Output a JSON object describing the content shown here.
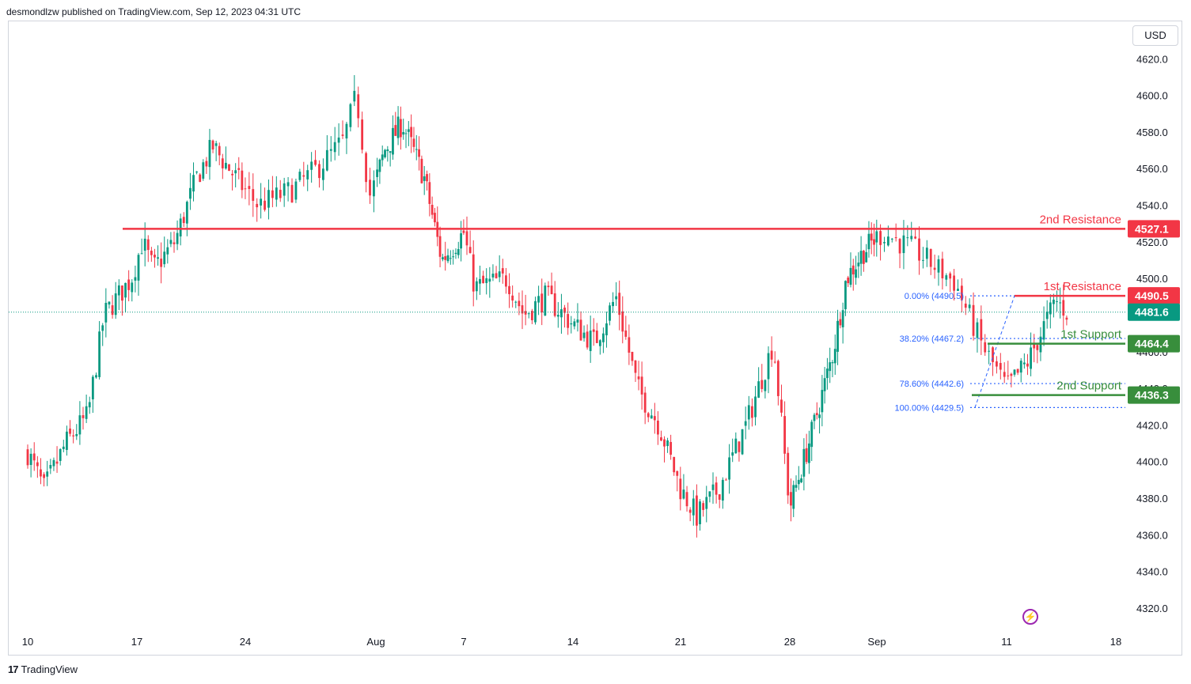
{
  "header": {
    "published_text": "desmondlzw published on TradingView.com, Sep 12, 2023 04:31 UTC",
    "currency": "USD",
    "brand": "TradingView",
    "brand_logo": "17"
  },
  "colors": {
    "up": "#089981",
    "down": "#f23645",
    "resistance": "#f23645",
    "support": "#388e3c",
    "current_price": "#089981",
    "fib": "#2962ff",
    "bolt": "#9c27b0"
  },
  "icons": {
    "brand_logo": "tradingview-logo-icon",
    "bolt": "lightning-icon"
  },
  "chart_data": {
    "type": "candlestick",
    "symbol": "",
    "ylim": [
      4305,
      4632
    ],
    "y_ticks": [
      4320.0,
      4340.0,
      4360.0,
      4380.0,
      4400.0,
      4420.0,
      4440.0,
      4460.0,
      4480.0,
      4500.0,
      4520.0,
      4540.0,
      4560.0,
      4580.0,
      4600.0,
      4620.0
    ],
    "x_ticks": [
      {
        "label": "10",
        "pos": 0
      },
      {
        "label": "17",
        "pos": 1
      },
      {
        "label": "24",
        "pos": 2
      },
      {
        "label": "Aug",
        "pos": 3
      },
      {
        "label": "7",
        "pos": 4
      },
      {
        "label": "14",
        "pos": 5
      },
      {
        "label": "21",
        "pos": 6
      },
      {
        "label": "28",
        "pos": 7
      },
      {
        "label": "Sep",
        "pos": 8
      },
      {
        "label": "11",
        "pos": 9
      },
      {
        "label": "18",
        "pos": 10
      }
    ],
    "close_path": [
      [
        0,
        4405
      ],
      [
        0.15,
        4385
      ],
      [
        0.35,
        4410
      ],
      [
        0.55,
        4425
      ],
      [
        0.7,
        4480
      ],
      [
        0.95,
        4500
      ],
      [
        1.05,
        4520
      ],
      [
        1.15,
        4505
      ],
      [
        1.35,
        4520
      ],
      [
        1.55,
        4555
      ],
      [
        1.7,
        4572
      ],
      [
        1.85,
        4560
      ],
      [
        2.1,
        4540
      ],
      [
        2.35,
        4548
      ],
      [
        2.55,
        4560
      ],
      [
        2.75,
        4575
      ],
      [
        2.85,
        4600
      ],
      [
        2.95,
        4545
      ],
      [
        3.1,
        4570
      ],
      [
        3.3,
        4585
      ],
      [
        3.55,
        4555
      ],
      [
        3.75,
        4510
      ],
      [
        4.0,
        4525
      ],
      [
        4.1,
        4495
      ],
      [
        4.4,
        4500
      ],
      [
        4.55,
        4480
      ],
      [
        4.75,
        4490
      ],
      [
        5.0,
        4475
      ],
      [
        5.2,
        4465
      ],
      [
        5.4,
        4490
      ],
      [
        5.6,
        4440
      ],
      [
        5.8,
        4420
      ],
      [
        6.0,
        4385
      ],
      [
        6.15,
        4370
      ],
      [
        6.35,
        4385
      ],
      [
        6.6,
        4420
      ],
      [
        6.85,
        4465
      ],
      [
        7.0,
        4375
      ],
      [
        7.25,
        4415
      ],
      [
        7.5,
        4460
      ],
      [
        7.65,
        4500
      ],
      [
        7.85,
        4515
      ],
      [
        8.05,
        4525
      ],
      [
        8.3,
        4515
      ],
      [
        8.6,
        4498
      ],
      [
        8.8,
        4465
      ],
      [
        9.0,
        4440
      ],
      [
        9.2,
        4455
      ],
      [
        9.35,
        4475
      ],
      [
        9.45,
        4488
      ],
      [
        9.55,
        4482
      ]
    ],
    "levels": [
      {
        "name": "2nd Resistance",
        "value": 4527.1,
        "label": "4527.1",
        "kind": "resistance"
      },
      {
        "name": "1st Resistance",
        "value": 4490.5,
        "label": "4490.5",
        "kind": "resistance"
      },
      {
        "name": "1st Support",
        "value": 4464.4,
        "label": "4464.4",
        "kind": "support"
      },
      {
        "name": "2nd Support",
        "value": 4436.3,
        "label": "4436.3",
        "kind": "support"
      }
    ],
    "current_price": {
      "value": 4481.6,
      "label": "4481.6"
    },
    "fibonacci": [
      {
        "ratio": "0.00%",
        "value": 4490.5,
        "label": "0.00% (4490.5)"
      },
      {
        "ratio": "38.20%",
        "value": 4467.2,
        "label": "38.20% (4467.2)"
      },
      {
        "ratio": "78.60%",
        "value": 4442.6,
        "label": "78.60% (4442.6)"
      },
      {
        "ratio": "100.00%",
        "value": 4429.5,
        "label": "100.00% (4429.5)"
      }
    ]
  }
}
